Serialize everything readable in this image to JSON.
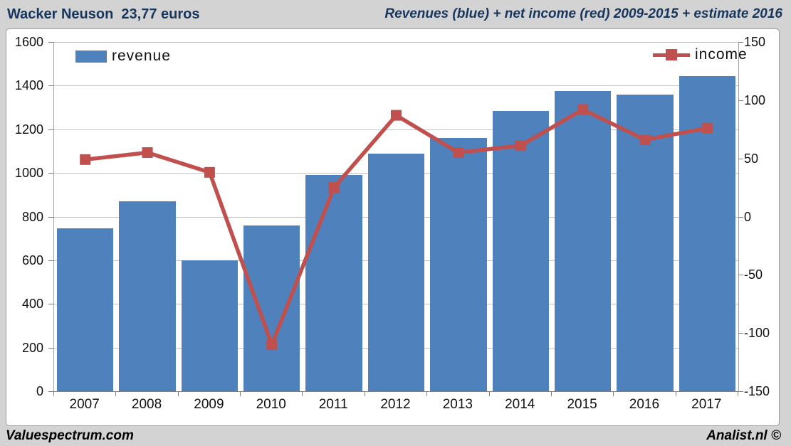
{
  "header": {
    "left_title": "Wacker Neuson  23,77 euros",
    "right_title": "Revenues (blue) + net income (red) 2009-2015 + estimate 2016"
  },
  "footer": {
    "left": "Valuespectrum.com",
    "right": "Analist.nl ©"
  },
  "legend": {
    "revenue_label": "revenue",
    "income_label": "income"
  },
  "colors": {
    "bar_blue": "#4f81bd",
    "line_red": "#c0504d",
    "title_navy": "#17365d",
    "gridline": "#c3c3c3",
    "axis": "#7f7f7f",
    "background": "#d3d3d3",
    "plot_background": "#ffffff"
  },
  "chart_data": {
    "type": "bar",
    "subtype": "bar+line combo, dual axis",
    "title": "Revenues (blue) + net income (red) 2009-2015 + estimate 2016",
    "xlabel": "",
    "ylabel": "",
    "categories": [
      "2007",
      "2008",
      "2009",
      "2010",
      "2011",
      "2012",
      "2013",
      "2014",
      "2015",
      "2016",
      "2017"
    ],
    "series": [
      {
        "name": "revenue",
        "render": "bar",
        "axis": "left",
        "color": "#4f81bd",
        "values": [
          745,
          870,
          600,
          760,
          990,
          1090,
          1160,
          1285,
          1375,
          1360,
          1445
        ]
      },
      {
        "name": "income",
        "render": "line",
        "axis": "right",
        "color": "#c0504d",
        "marker": "square",
        "values": [
          49,
          55,
          38,
          -110,
          25,
          87,
          55,
          61,
          92,
          66,
          76
        ]
      }
    ],
    "left_axis": {
      "min": 0,
      "max": 1600,
      "step": 200,
      "ticks": [
        "0",
        "200",
        "400",
        "600",
        "800",
        "1000",
        "1200",
        "1400",
        "1600"
      ]
    },
    "right_axis": {
      "min": -150,
      "max": 150,
      "step": 50,
      "ticks": [
        "-150",
        "-100",
        "-50",
        "0",
        "50",
        "100",
        "150"
      ]
    },
    "grid": true,
    "legend_position": "top-inside"
  }
}
